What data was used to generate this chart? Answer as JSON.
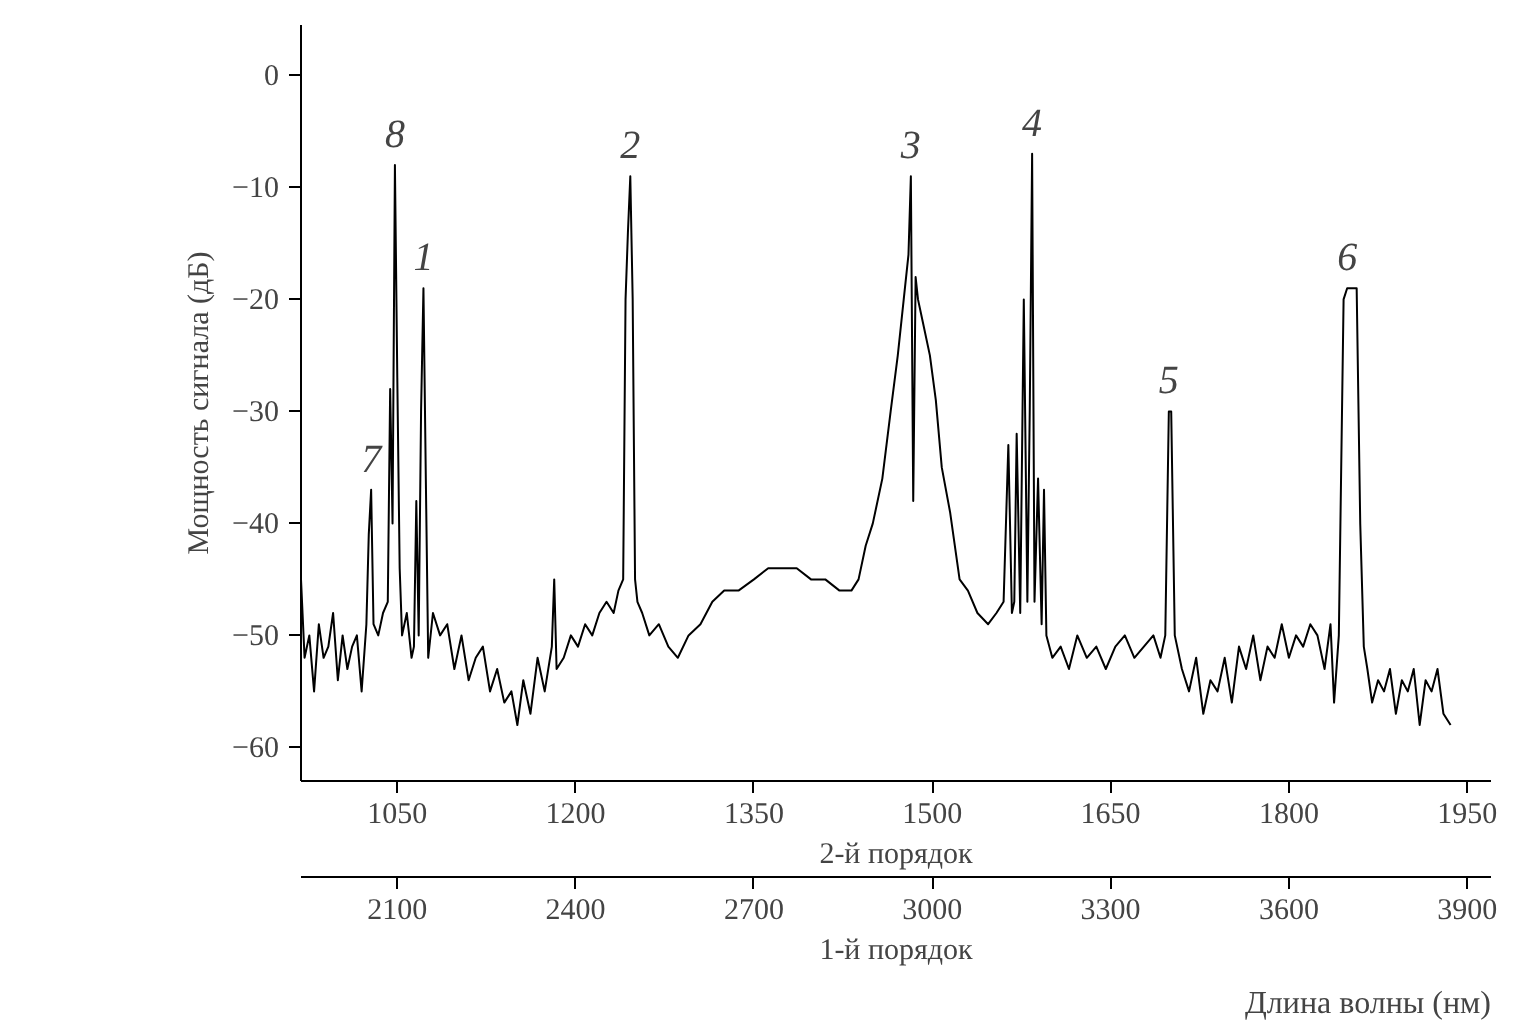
{
  "chart_data": {
    "type": "line",
    "xlabel": "2-й порядок",
    "x2label": "1-й порядок",
    "ylabel": "Мощность сигнала (дБ)",
    "xlim": [
      969,
      1970
    ],
    "xticks": [
      1050,
      1200,
      1350,
      1500,
      1650,
      1800,
      1950
    ],
    "x2lim": [
      1938,
      3940
    ],
    "x2ticks": [
      2100,
      2400,
      2700,
      3000,
      3300,
      3600,
      3900
    ],
    "ylim": [
      -63,
      4.5
    ],
    "yticks": [
      -60,
      -50,
      -40,
      -30,
      -20,
      -10,
      0
    ],
    "grid": false,
    "marker": "none",
    "line_style": "solid",
    "series": [
      {
        "color": "#000000",
        "x": [
          969,
          972,
          976,
          980,
          984,
          988,
          992,
          996,
          1000,
          1004,
          1008,
          1012,
          1016,
          1020,
          1024,
          1026,
          1028,
          1030,
          1034,
          1038,
          1042,
          1044,
          1046,
          1048,
          1050,
          1052,
          1054,
          1058,
          1062,
          1064,
          1066,
          1068,
          1070,
          1072,
          1074,
          1076,
          1080,
          1086,
          1092,
          1098,
          1104,
          1110,
          1116,
          1122,
          1128,
          1134,
          1140,
          1146,
          1151,
          1156,
          1162,
          1168,
          1174,
          1180,
          1182,
          1184,
          1190,
          1196,
          1202,
          1208,
          1214,
          1220,
          1226,
          1232,
          1236,
          1240,
          1242,
          1244,
          1246,
          1248,
          1250,
          1252,
          1256,
          1262,
          1270,
          1278,
          1286,
          1295,
          1305,
          1315,
          1325,
          1337,
          1350,
          1362,
          1374,
          1386,
          1398,
          1410,
          1422,
          1432,
          1438,
          1444,
          1450,
          1458,
          1465,
          1471,
          1476,
          1480,
          1482,
          1484,
          1486,
          1488,
          1492,
          1498,
          1503,
          1508,
          1515,
          1523,
          1530,
          1538,
          1547,
          1554,
          1560,
          1564,
          1567,
          1569,
          1571,
          1574,
          1577,
          1580,
          1582,
          1584,
          1586,
          1589,
          1592,
          1594,
          1596,
          1601,
          1608,
          1615,
          1622,
          1630,
          1638,
          1646,
          1654,
          1662,
          1670,
          1678,
          1686,
          1692,
          1696,
          1699,
          1701,
          1704,
          1710,
          1716,
          1722,
          1728,
          1734,
          1740,
          1746,
          1752,
          1758,
          1764,
          1770,
          1776,
          1782,
          1788,
          1794,
          1800,
          1806,
          1812,
          1818,
          1824,
          1830,
          1835,
          1838,
          1842,
          1846,
          1849,
          1853,
          1857,
          1860,
          1863,
          1866,
          1870,
          1875,
          1880,
          1885,
          1890,
          1895,
          1900,
          1905,
          1910,
          1915,
          1920,
          1925,
          1930,
          1936
        ],
        "values": [
          -45,
          -52,
          -50,
          -55,
          -49,
          -52,
          -51,
          -48,
          -54,
          -50,
          -53,
          -51,
          -50,
          -55,
          -49,
          -41,
          -37,
          -49,
          -50,
          -48,
          -47,
          -28,
          -40,
          -8,
          -27,
          -44,
          -50,
          -48,
          -52,
          -51,
          -38,
          -50,
          -30,
          -19,
          -36,
          -52,
          -48,
          -50,
          -49,
          -53,
          -50,
          -54,
          -52,
          -51,
          -55,
          -53,
          -56,
          -55,
          -58,
          -54,
          -57,
          -52,
          -55,
          -51,
          -45,
          -53,
          -52,
          -50,
          -51,
          -49,
          -50,
          -48,
          -47,
          -48,
          -46,
          -45,
          -20,
          -14,
          -9,
          -20,
          -45,
          -47,
          -48,
          -50,
          -49,
          -51,
          -52,
          -50,
          -49,
          -47,
          -46,
          -46,
          -45,
          -44,
          -44,
          -44,
          -45,
          -45,
          -46,
          -46,
          -45,
          -42,
          -40,
          -36,
          -30,
          -25,
          -20,
          -16,
          -9,
          -38,
          -18,
          -20,
          -22,
          -25,
          -29,
          -35,
          -39,
          -45,
          -46,
          -48,
          -49,
          -48,
          -47,
          -33,
          -48,
          -47,
          -32,
          -48,
          -20,
          -47,
          -30,
          -7,
          -47,
          -36,
          -49,
          -37,
          -50,
          -52,
          -51,
          -53,
          -50,
          -52,
          -51,
          -53,
          -51,
          -50,
          -52,
          -51,
          -50,
          -52,
          -50,
          -30,
          -30,
          -50,
          -53,
          -55,
          -52,
          -57,
          -54,
          -55,
          -52,
          -56,
          -51,
          -53,
          -50,
          -54,
          -51,
          -52,
          -49,
          -52,
          -50,
          -51,
          -49,
          -50,
          -53,
          -49,
          -56,
          -50,
          -20,
          -19,
          -19,
          -19,
          -40,
          -51,
          -53,
          -56,
          -54,
          -55,
          -53,
          -57,
          -54,
          -55,
          -53,
          -58,
          -54,
          -55,
          -53,
          -57,
          -58
        ]
      }
    ],
    "annotations": [
      {
        "text": "7",
        "x": 1028,
        "y": -37
      },
      {
        "text": "8",
        "x": 1048,
        "y": -8
      },
      {
        "text": "1",
        "x": 1072,
        "y": -19
      },
      {
        "text": "2",
        "x": 1246,
        "y": -9
      },
      {
        "text": "3",
        "x": 1482,
        "y": -9
      },
      {
        "text": "4",
        "x": 1584,
        "y": -7
      },
      {
        "text": "5",
        "x": 1699,
        "y": -30
      },
      {
        "text": "6",
        "x": 1849,
        "y": -19
      },
      "Длина волны (нм)"
    ]
  }
}
